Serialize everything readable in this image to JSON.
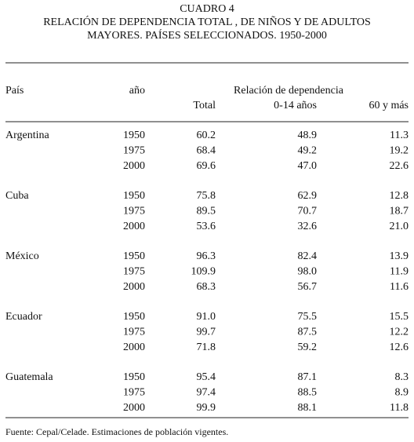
{
  "header": {
    "title": [
      "CUADRO 4",
      "RELACIÓN DE DEPENDENCIA TOTAL , DE NIÑOS Y DE ADULTOS",
      "MAYORES. PAÍSES SELECCIONADOS. 1950-2000"
    ]
  },
  "table": {
    "columns": {
      "country": "País",
      "year": "año",
      "group": "Relación de dependencia",
      "total": "Total",
      "children": "0-14 años",
      "elderly": "60 y más"
    },
    "groups": [
      {
        "country": "Argentina",
        "rows": [
          [
            "1950",
            "60.2",
            "48.9",
            "11.3"
          ],
          [
            "1975",
            "68.4",
            "49.2",
            "19.2"
          ],
          [
            "2000",
            "69.6",
            "47.0",
            "22.6"
          ]
        ]
      },
      {
        "country": "Cuba",
        "rows": [
          [
            "1950",
            "75.8",
            "62.9",
            "12.8"
          ],
          [
            "1975",
            "89.5",
            "70.7",
            "18.7"
          ],
          [
            "2000",
            "53.6",
            "32.6",
            "21.0"
          ]
        ]
      },
      {
        "country": "México",
        "rows": [
          [
            "1950",
            "96.3",
            "82.4",
            "13.9"
          ],
          [
            "1975",
            "109.9",
            "98.0",
            "11.9"
          ],
          [
            "2000",
            "68.3",
            "56.7",
            "11.6"
          ]
        ]
      },
      {
        "country": "Ecuador",
        "rows": [
          [
            "1950",
            "91.0",
            "75.5",
            "15.5"
          ],
          [
            "1975",
            "99.7",
            "87.5",
            "12.2"
          ],
          [
            "2000",
            "71.8",
            "59.2",
            "12.6"
          ]
        ]
      },
      {
        "country": "Guatemala",
        "rows": [
          [
            "1950",
            "95.4",
            "87.1",
            "8.3"
          ],
          [
            "1975",
            "97.4",
            "88.5",
            "8.9"
          ],
          [
            "2000",
            "99.9",
            "88.1",
            "11.8"
          ]
        ]
      }
    ]
  },
  "footer": {
    "source": "Fuente: Cepal/Celade. Estimaciones de población vigentes."
  }
}
